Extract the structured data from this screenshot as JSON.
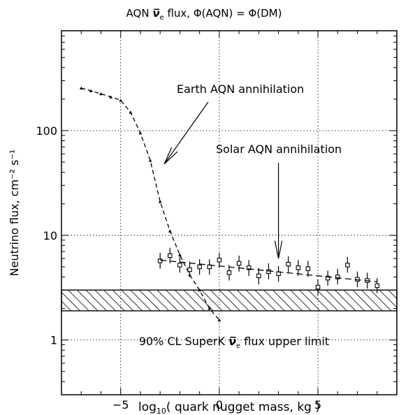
{
  "chart_data": {
    "type": "scatter",
    "title": "AQN ν̅e flux,   Φ(AQN) = Φ(DM)",
    "xlabel": "log10( quark nugget mass, kg )",
    "ylabel": "Neutrino flux, cm⁻² s⁻¹",
    "xlim": [
      -8,
      9
    ],
    "ylim": [
      0.3,
      900
    ],
    "y_scale": "log",
    "grid": true,
    "x_ticks": [
      -5,
      0,
      5
    ],
    "y_ticks": [
      1,
      10,
      100
    ],
    "x_tick_labels": [
      "−5",
      "0",
      "5"
    ],
    "y_tick_labels": [
      "1",
      "10",
      "100"
    ],
    "series": [
      {
        "style": "dashed-line-triangle-markers",
        "x": [
          -7.0,
          -6.5,
          -6.0,
          -5.5,
          -5.0,
          -4.5,
          -4.0,
          -3.5,
          -3.0,
          -2.5,
          -2.0,
          -1.5,
          -1.0,
          -0.5,
          0.0
        ],
        "y": [
          255,
          240,
          225,
          210,
          195,
          150,
          95,
          52,
          21,
          11,
          6.5,
          4.2,
          3.0,
          2.0,
          1.55
        ]
      },
      {
        "style": "squares-with-error-bars",
        "x": [
          -3.0,
          -2.5,
          -2.0,
          -1.5,
          -1.0,
          -0.5,
          0.0,
          0.5,
          1.0,
          1.5,
          2.0,
          2.5,
          3.0,
          3.5,
          4.0,
          4.5,
          5.0,
          5.5,
          6.0,
          6.5,
          7.0,
          7.5,
          8.0
        ],
        "y": [
          5.7,
          6.4,
          5.2,
          4.7,
          5.0,
          5.0,
          5.8,
          4.4,
          5.4,
          4.9,
          4.1,
          4.5,
          4.3,
          5.3,
          4.9,
          4.8,
          3.2,
          3.9,
          4.0,
          5.2,
          3.8,
          3.7,
          3.3
        ],
        "err_hi": [
          6.8,
          7.6,
          6.2,
          5.6,
          5.9,
          5.9,
          6.8,
          5.2,
          6.4,
          5.8,
          4.9,
          5.4,
          5.1,
          6.3,
          5.8,
          5.7,
          3.8,
          4.6,
          4.8,
          6.2,
          4.5,
          4.4,
          3.9
        ],
        "err_lo": [
          4.8,
          5.4,
          4.4,
          4.0,
          4.2,
          4.2,
          4.9,
          3.7,
          4.5,
          4.1,
          3.4,
          3.8,
          3.6,
          4.4,
          4.1,
          4.0,
          2.7,
          3.3,
          3.4,
          4.4,
          3.2,
          3.1,
          2.8
        ]
      },
      {
        "style": "dashed-line",
        "x": [
          -3.0,
          8.0
        ],
        "y": [
          5.8,
          3.6
        ]
      }
    ],
    "band": {
      "y_low": 1.9,
      "y_high": 3.0,
      "style": "hatched"
    },
    "annotations": [
      {
        "text": "Earth AQN annihilation",
        "arrow_to": [
          -3.0,
          48
        ]
      },
      {
        "text": "Solar AQN annihilation",
        "arrow_to": [
          3.0,
          6.0
        ]
      },
      {
        "text": "90% CL SuperK ν̅e flux upper limit"
      }
    ]
  }
}
